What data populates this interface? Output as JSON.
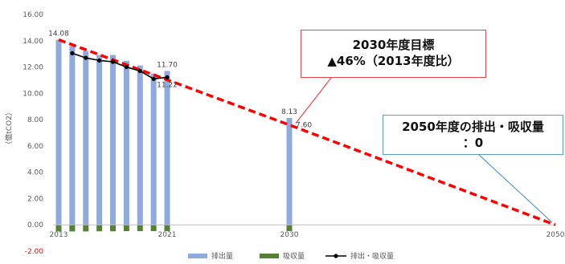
{
  "chart_data": {
    "type": "bar",
    "ylabel": "（億tCO2）",
    "ylim": [
      -2,
      16
    ],
    "yticks": [
      "16.00",
      "14.00",
      "12.00",
      "10.00",
      "8.00",
      "6.00",
      "4.00",
      "2.00",
      "0.00",
      "-2.00"
    ],
    "years": [
      2013,
      2014,
      2015,
      2016,
      2017,
      2018,
      2019,
      2020,
      2021,
      2030,
      2050
    ],
    "xtick_labels": [
      "2013",
      "2021",
      "2030",
      "2050"
    ],
    "series": [
      {
        "name": "排出量",
        "type": "bar",
        "color": "#8faadc",
        "x": [
          2013,
          2014,
          2015,
          2016,
          2017,
          2018,
          2019,
          2020,
          2021,
          2030
        ],
        "values": [
          14.08,
          13.59,
          13.21,
          12.92,
          12.92,
          12.47,
          12.12,
          11.5,
          11.7,
          8.13
        ]
      },
      {
        "name": "吸収量",
        "type": "bar",
        "color": "#548235",
        "x": [
          2013,
          2014,
          2015,
          2016,
          2017,
          2018,
          2019,
          2020,
          2021,
          2030
        ],
        "values": [
          -0.5,
          -0.5,
          -0.5,
          -0.49,
          -0.49,
          -0.48,
          -0.48,
          -0.48,
          -0.48,
          -0.47
        ]
      },
      {
        "name": "排出・吸収量",
        "type": "line",
        "color": "#000000",
        "x": [
          2014,
          2015,
          2016,
          2017,
          2018,
          2019,
          2020,
          2021
        ],
        "values": [
          13.05,
          12.7,
          12.5,
          12.4,
          12.0,
          11.7,
          11.1,
          11.22
        ]
      },
      {
        "name": "",
        "type": "dashed-line",
        "color": "#ff0000",
        "x": [
          2013,
          2030,
          2050
        ],
        "values": [
          14.08,
          7.6,
          0
        ]
      }
    ],
    "data_labels": [
      {
        "x": 2013,
        "y": 14.08,
        "text": "14.08",
        "pos": "above"
      },
      {
        "x": 2021,
        "y": 11.7,
        "text": "11.70",
        "pos": "above"
      },
      {
        "x": 2021,
        "y": 11.22,
        "text": "11.22",
        "pos": "below"
      },
      {
        "x": 2030,
        "y": 8.13,
        "text": "8.13",
        "pos": "above"
      },
      {
        "x": 2030,
        "y": 7.6,
        "text": "7.60",
        "pos": "right"
      }
    ],
    "legend": [
      "排出量",
      "吸収量",
      "排出・吸収量"
    ],
    "legend_position": "bottom"
  },
  "callouts": {
    "target_2030_line1": "2030年度目標",
    "target_2030_line2": "▲46%（2013年度比）",
    "target_2050_line1": "2050年度の排出・吸収量",
    "target_2050_line2": "：0"
  }
}
